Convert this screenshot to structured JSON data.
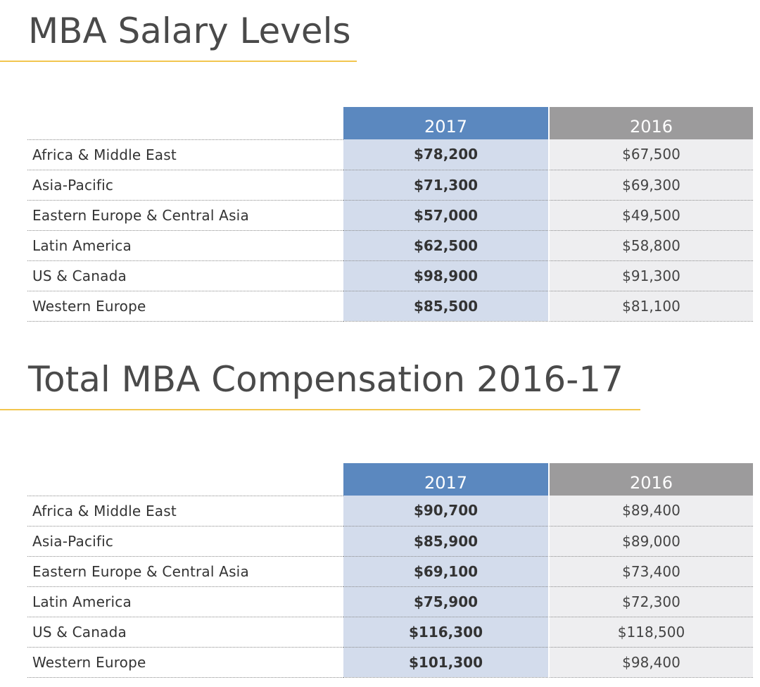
{
  "chart_data": [
    {
      "type": "table",
      "title": "MBA Salary Levels",
      "columns": [
        "2017",
        "2016"
      ],
      "rows": [
        {
          "region": "Africa & Middle East",
          "values": [
            "$78,200",
            "$67,500"
          ]
        },
        {
          "region": "Asia-Pacific",
          "values": [
            "$71,300",
            "$69,300"
          ]
        },
        {
          "region": "Eastern Europe & Central Asia",
          "values": [
            "$57,000",
            "$49,500"
          ]
        },
        {
          "region": "Latin America",
          "values": [
            "$62,500",
            "$58,800"
          ]
        },
        {
          "region": "US & Canada",
          "values": [
            "$98,900",
            "$91,300"
          ]
        },
        {
          "region": "Western Europe",
          "values": [
            "$85,500",
            "$81,100"
          ]
        }
      ]
    },
    {
      "type": "table",
      "title": "Total MBA Compensation 2016-17",
      "columns": [
        "2017",
        "2016"
      ],
      "rows": [
        {
          "region": "Africa & Middle East",
          "values": [
            "$90,700",
            "$89,400"
          ]
        },
        {
          "region": "Asia-Pacific",
          "values": [
            "$85,900",
            "$89,000"
          ]
        },
        {
          "region": "Eastern Europe & Central Asia",
          "values": [
            "$69,100",
            "$73,400"
          ]
        },
        {
          "region": "Latin America",
          "values": [
            "$75,900",
            "$72,300"
          ]
        },
        {
          "region": "US & Canada",
          "values": [
            "$116,300",
            "$118,500"
          ]
        },
        {
          "region": "Western Europe",
          "values": [
            "$101,300",
            "$98,400"
          ]
        }
      ]
    }
  ],
  "colors": {
    "accent_2017_header": "#5b88bf",
    "accent_2017_cell": "#d3dcec",
    "header_2016": "#9c9b9c",
    "cell_2016": "#eeeef0",
    "title_underline": "#f2c64e"
  }
}
